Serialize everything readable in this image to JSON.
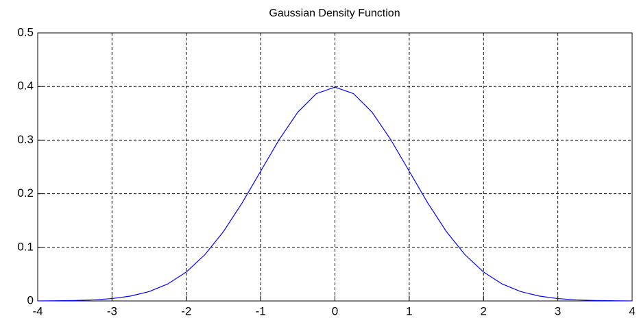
{
  "chart_data": {
    "type": "line",
    "title": "Gaussian Density Function",
    "x": [
      -4,
      -3.75,
      -3.5,
      -3.25,
      -3,
      -2.75,
      -2.5,
      -2.25,
      -2,
      -1.75,
      -1.5,
      -1.25,
      -1,
      -0.75,
      -0.5,
      -0.25,
      0,
      0.25,
      0.5,
      0.75,
      1,
      1.25,
      1.5,
      1.75,
      2,
      2.25,
      2.5,
      2.75,
      3,
      3.25,
      3.5,
      3.75,
      4
    ],
    "series": [
      {
        "color": "#0000ff",
        "values": [
          0.0001,
          0.0004,
          0.0009,
          0.002,
          0.0044,
          0.0091,
          0.0175,
          0.0317,
          0.054,
          0.0863,
          0.1295,
          0.1826,
          0.242,
          0.3011,
          0.3521,
          0.3867,
          0.3989,
          0.3867,
          0.3521,
          0.3011,
          0.242,
          0.1826,
          0.1295,
          0.0863,
          0.054,
          0.0317,
          0.0175,
          0.0091,
          0.0044,
          0.002,
          0.0009,
          0.0004,
          0.0001
        ]
      }
    ],
    "xlim": [
      -4,
      4
    ],
    "xticks": [
      -4,
      -3,
      -2,
      -1,
      0,
      1,
      2,
      3,
      4
    ],
    "ylim": [
      0,
      0.5
    ],
    "yticks": [
      0,
      0.1,
      0.2,
      0.3,
      0.4,
      0.5
    ],
    "grid": true
  }
}
